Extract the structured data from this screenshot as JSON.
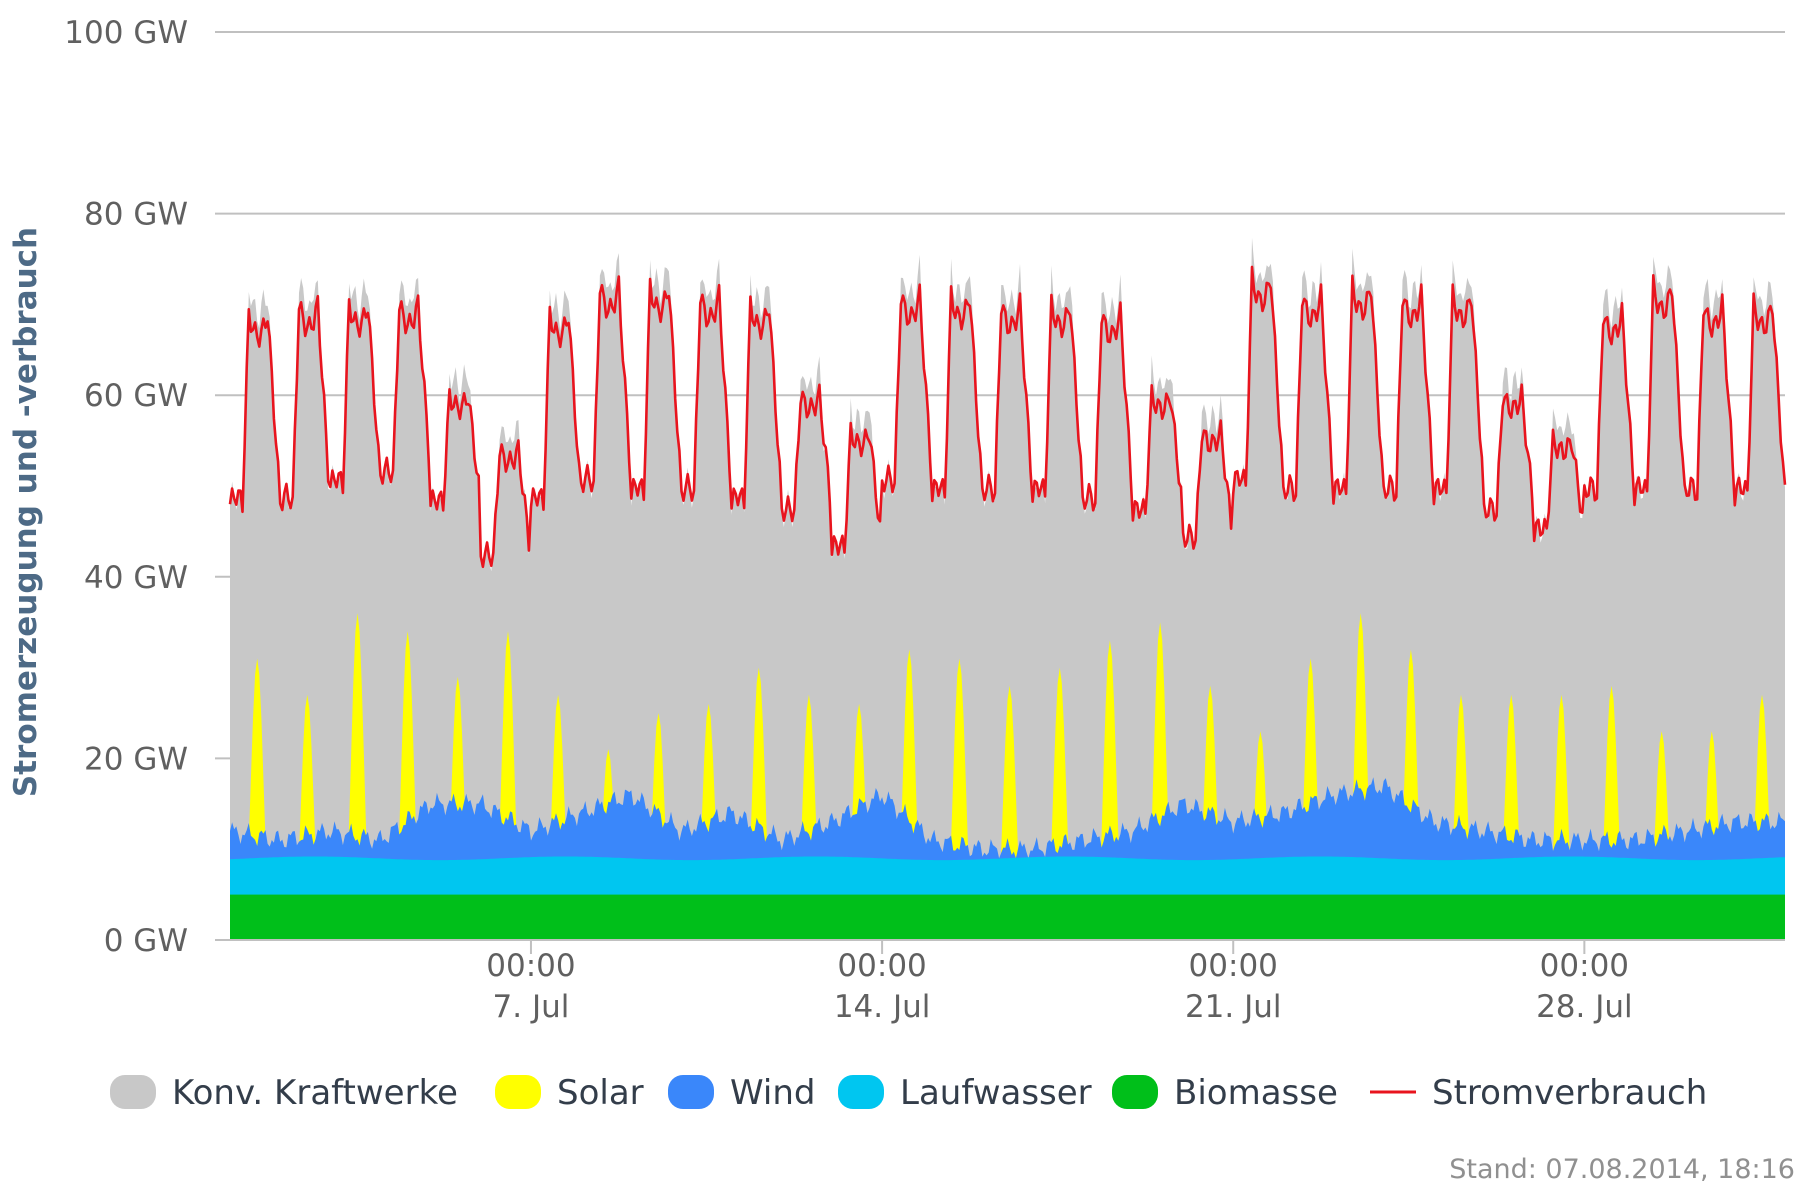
{
  "chart_data": {
    "type": "area",
    "ylabel": "Stromerzeugung und -verbrauch",
    "y_unit": "GW",
    "ylim": [
      0,
      100
    ],
    "y_ticks": [
      {
        "value": 0,
        "label": "0 GW"
      },
      {
        "value": 20,
        "label": "20 GW"
      },
      {
        "value": 40,
        "label": "40 GW"
      },
      {
        "value": 60,
        "label": "60 GW"
      },
      {
        "value": 80,
        "label": "80 GW"
      },
      {
        "value": 100,
        "label": "100 GW"
      }
    ],
    "x_range": [
      "2014-07-01T00:00",
      "2014-08-01T00:00"
    ],
    "x_ticks": [
      {
        "date": "2014-07-07T00:00",
        "time": "00:00",
        "label": "7. Jul"
      },
      {
        "date": "2014-07-14T00:00",
        "time": "00:00",
        "label": "14. Jul"
      },
      {
        "date": "2014-07-21T00:00",
        "time": "00:00",
        "label": "21. Jul"
      },
      {
        "date": "2014-07-28T00:00",
        "time": "00:00",
        "label": "28. Jul"
      }
    ],
    "grid": true,
    "legend_position": "bottom",
    "stamp": "Stand: 07.08.2014, 18:16",
    "series": [
      {
        "name": "Konv. Kraftwerke",
        "color": "#c8c8c8",
        "kind": "area"
      },
      {
        "name": "Solar",
        "color": "#ffff00",
        "kind": "area",
        "daily_peak_gw": [
          31,
          27,
          36,
          34,
          29,
          34,
          27,
          21,
          25,
          26,
          30,
          27,
          26,
          32,
          31,
          28,
          30,
          33,
          35,
          28,
          23,
          31,
          36,
          32,
          27,
          27,
          27,
          28,
          23,
          23,
          27
        ]
      },
      {
        "name": "Wind",
        "color": "#3a87fa",
        "kind": "area",
        "daily_top_gw": [
          12,
          11,
          12,
          11,
          15,
          15,
          12,
          14,
          16,
          12,
          14,
          11,
          13,
          16,
          11,
          10,
          10,
          11,
          12,
          15,
          13,
          14,
          16,
          17,
          13,
          12,
          11,
          11,
          11,
          12,
          13
        ]
      },
      {
        "name": "Laufwasser",
        "color": "#00c6f0",
        "kind": "area",
        "level_gw": 9
      },
      {
        "name": "Biomasse",
        "color": "#00bf1a",
        "kind": "area",
        "level_gw": 5
      },
      {
        "name": "Stromverbrauch",
        "color": "#e8141e",
        "kind": "line",
        "daily_peak_gw": [
          69,
          70,
          70,
          70,
          60,
          54,
          69,
          72,
          72,
          71,
          70,
          60,
          56,
          71,
          71,
          70,
          70,
          69,
          60,
          56,
          73,
          71,
          72,
          71,
          71,
          60,
          55,
          69,
          72,
          70,
          70
        ],
        "daily_min_gw": [
          48,
          48,
          50,
          51,
          48,
          42,
          48,
          50,
          49,
          49,
          48,
          47,
          43,
          50,
          49,
          49,
          49,
          48,
          47,
          44,
          50,
          49,
          49,
          49,
          49,
          47,
          45,
          49,
          49,
          49,
          49
        ]
      }
    ]
  }
}
